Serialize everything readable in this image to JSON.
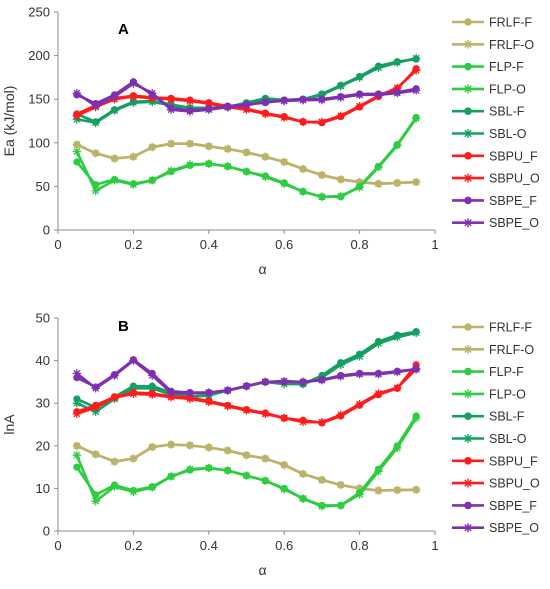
{
  "chart_data": [
    {
      "type": "line",
      "panel_label": "A",
      "xlabel": "α",
      "ylabel": "Ea (kJ/mol)",
      "xlim": [
        0,
        1
      ],
      "ylim": [
        0,
        250
      ],
      "xticks": [
        0,
        0.2,
        0.4,
        0.6,
        0.8,
        1
      ],
      "yticks": [
        0,
        50,
        100,
        150,
        200,
        250
      ],
      "grid": false,
      "legend_position": "right",
      "x": [
        0.05,
        0.1,
        0.15,
        0.2,
        0.25,
        0.3,
        0.35,
        0.4,
        0.45,
        0.5,
        0.55,
        0.6,
        0.65,
        0.7,
        0.75,
        0.8,
        0.85,
        0.9,
        0.95
      ],
      "series": [
        {
          "name": "FRLF-F",
          "color": "#bcb26a",
          "marker": "circle",
          "values": [
            98,
            88,
            82,
            84,
            95,
            99,
            99,
            96,
            93,
            89,
            84,
            78,
            70,
            63,
            58,
            55,
            53,
            54,
            55
          ]
        },
        {
          "name": "FRLF-O",
          "color": "#bcb26a",
          "marker": "star",
          "values": [
            98,
            88,
            82,
            84,
            95,
            99,
            99,
            96,
            93,
            89,
            84,
            78,
            70,
            63,
            58,
            55,
            53,
            54,
            55
          ]
        },
        {
          "name": "FLP-F",
          "color": "#2ecc40",
          "marker": "circle",
          "values": [
            78,
            52,
            58,
            53,
            57,
            67,
            74,
            76,
            73,
            67,
            62,
            54,
            44,
            38,
            38,
            50,
            73,
            98,
            129
          ]
        },
        {
          "name": "FLP-O",
          "color": "#2ecc40",
          "marker": "star",
          "values": [
            90,
            45,
            57,
            52,
            57,
            68,
            75,
            76,
            73,
            67,
            61,
            53,
            44,
            38,
            39,
            49,
            72,
            97,
            128
          ]
        },
        {
          "name": "SBL-F",
          "color": "#13a060",
          "marker": "circle",
          "values": [
            133,
            124,
            138,
            147,
            148,
            144,
            140,
            140,
            141,
            146,
            151,
            149,
            150,
            156,
            166,
            176,
            188,
            193,
            196
          ]
        },
        {
          "name": "SBL-O",
          "color": "#13a060",
          "marker": "star",
          "values": [
            127,
            123,
            137,
            146,
            147,
            143,
            140,
            140,
            141,
            145,
            150,
            148,
            149,
            155,
            165,
            175,
            186,
            192,
            197
          ]
        },
        {
          "name": "SBPU_F",
          "color": "#ff1c1c",
          "marker": "circle",
          "values": [
            133,
            143,
            151,
            154,
            152,
            151,
            149,
            146,
            142,
            139,
            134,
            130,
            124,
            123,
            130,
            141,
            153,
            162,
            185
          ]
        },
        {
          "name": "SBPU_O",
          "color": "#ff1c1c",
          "marker": "star",
          "values": [
            131,
            141,
            150,
            153,
            151,
            150,
            148,
            145,
            141,
            138,
            133,
            129,
            124,
            124,
            131,
            142,
            154,
            163,
            183
          ]
        },
        {
          "name": "SBPE_F",
          "color": "#7f30b0",
          "marker": "circle",
          "values": [
            155,
            145,
            155,
            170,
            155,
            140,
            137,
            139,
            142,
            144,
            146,
            149,
            150,
            150,
            153,
            156,
            156,
            158,
            162
          ]
        },
        {
          "name": "SBPE_O",
          "color": "#7f30b0",
          "marker": "star",
          "values": [
            157,
            142,
            153,
            168,
            157,
            138,
            136,
            138,
            141,
            143,
            147,
            148,
            149,
            149,
            152,
            155,
            155,
            157,
            160
          ]
        }
      ]
    },
    {
      "type": "line",
      "panel_label": "B",
      "xlabel": "α",
      "ylabel": "lnA",
      "xlim": [
        0,
        1
      ],
      "ylim": [
        0,
        50
      ],
      "xticks": [
        0,
        0.2,
        0.4,
        0.6,
        0.8,
        1
      ],
      "yticks": [
        0,
        10,
        20,
        30,
        40,
        50
      ],
      "grid": false,
      "legend_position": "right",
      "x": [
        0.05,
        0.1,
        0.15,
        0.2,
        0.25,
        0.3,
        0.35,
        0.4,
        0.45,
        0.5,
        0.55,
        0.6,
        0.65,
        0.7,
        0.75,
        0.8,
        0.85,
        0.9,
        0.95
      ],
      "series": [
        {
          "name": "FRLF-F",
          "color": "#bcb26a",
          "marker": "circle",
          "values": [
            20,
            18,
            16.3,
            17,
            19.7,
            20.3,
            20.1,
            19.6,
            18.9,
            17.8,
            17,
            15.5,
            13.4,
            12,
            10.8,
            10,
            9.5,
            9.6,
            9.7
          ]
        },
        {
          "name": "FRLF-O",
          "color": "#bcb26a",
          "marker": "star",
          "values": [
            20,
            18,
            16.3,
            17,
            19.7,
            20.3,
            20.1,
            19.6,
            18.9,
            17.8,
            17,
            15.5,
            13.4,
            12,
            10.8,
            10,
            9.5,
            9.6,
            9.7
          ]
        },
        {
          "name": "FLP-F",
          "color": "#2ecc40",
          "marker": "circle",
          "values": [
            15,
            8.5,
            10.8,
            9.5,
            10.4,
            12.8,
            14.3,
            14.8,
            14.2,
            13,
            11.8,
            10,
            7.6,
            6,
            6,
            9,
            14.5,
            20,
            27
          ]
        },
        {
          "name": "FLP-O",
          "color": "#2ecc40",
          "marker": "star",
          "values": [
            17.8,
            7,
            10.4,
            9.2,
            10.2,
            12.8,
            14.5,
            14.8,
            14.2,
            13,
            11.8,
            9.8,
            7.6,
            5.8,
            6,
            8.6,
            14,
            19.5,
            26.5
          ]
        },
        {
          "name": "SBL-F",
          "color": "#13a060",
          "marker": "circle",
          "values": [
            31,
            29,
            31.5,
            34,
            34,
            32.5,
            31.5,
            32,
            33,
            34,
            35,
            35,
            34.5,
            36.5,
            39.5,
            41.5,
            44.5,
            46,
            46.8
          ]
        },
        {
          "name": "SBL-O",
          "color": "#13a060",
          "marker": "star",
          "values": [
            30,
            28,
            31,
            33.5,
            33.5,
            32,
            31.5,
            31.8,
            33,
            34,
            35,
            34.5,
            34.5,
            36,
            39,
            41,
            44,
            45.5,
            46.5
          ]
        },
        {
          "name": "SBPU_F",
          "color": "#ff1c1c",
          "marker": "circle",
          "values": [
            28,
            29.5,
            31.5,
            32.5,
            32.3,
            31.6,
            31.3,
            30.5,
            29.5,
            28.5,
            27.7,
            26.5,
            26,
            25.4,
            27,
            29.5,
            32,
            33.5,
            39
          ]
        },
        {
          "name": "SBPU_O",
          "color": "#ff1c1c",
          "marker": "star",
          "values": [
            27.5,
            29,
            31.3,
            32.2,
            32,
            31.4,
            31,
            30.3,
            29.3,
            28.3,
            27.5,
            26.5,
            25.6,
            25.5,
            27.3,
            29.8,
            32.3,
            33.6,
            38
          ]
        },
        {
          "name": "SBPE_F",
          "color": "#7f30b0",
          "marker": "circle",
          "values": [
            36,
            33.8,
            36.7,
            40.2,
            37,
            32.8,
            32.5,
            32.5,
            33,
            34,
            35,
            35,
            35,
            35.5,
            36.5,
            37,
            37,
            37.5,
            38
          ]
        },
        {
          "name": "SBPE_O",
          "color": "#7f30b0",
          "marker": "star",
          "values": [
            37,
            33.5,
            36.5,
            40,
            36.5,
            32.5,
            32.3,
            32.5,
            33,
            34,
            35,
            35.2,
            35,
            35.4,
            36.3,
            36.8,
            36.8,
            37.3,
            38
          ]
        }
      ]
    }
  ]
}
